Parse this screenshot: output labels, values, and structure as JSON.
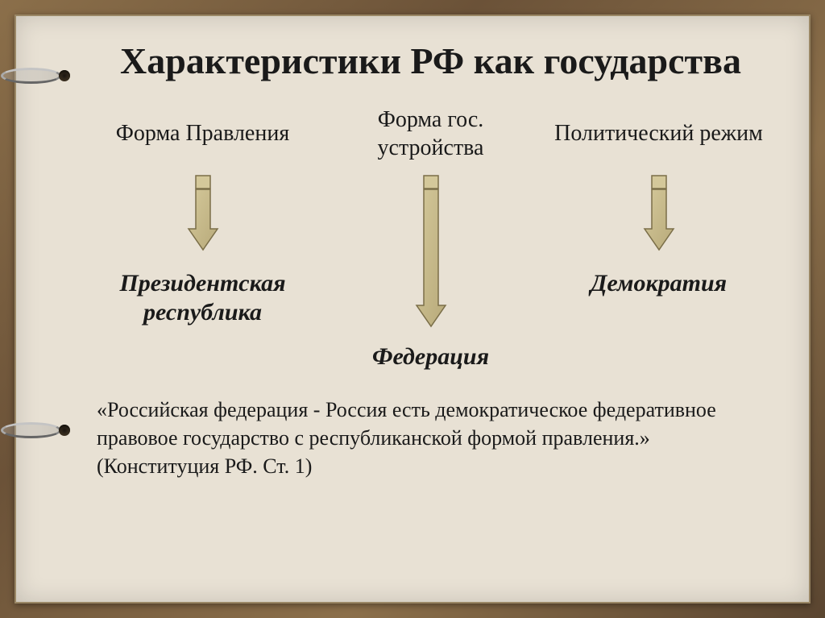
{
  "slide": {
    "title": "Характеристики РФ как государства",
    "title_fontsize": 46,
    "columns": [
      {
        "header": "Форма Правления",
        "result": "Президентская республика",
        "arrow_height": 95
      },
      {
        "header": "Форма гос. устройства",
        "result": "Федерация",
        "arrow_height": 190
      },
      {
        "header": "Политический режим",
        "result": "Демократия",
        "arrow_height": 95
      }
    ],
    "header_fontsize": 28,
    "result_fontsize": 30,
    "quote": "«Российская федерация - Россия есть демократическое федеративное правовое государство с республиканской формой правления.»  (Конституция РФ. Ст. 1)",
    "quote_fontsize": 26,
    "colors": {
      "background": "#e8e1d4",
      "frame": "#7a5f3e",
      "text": "#1a1a1a",
      "arrow_fill_light": "#d4c89a",
      "arrow_fill_dark": "#b8aa7a",
      "arrow_stroke": "#7a6e48"
    },
    "arrow": {
      "tail_width": 18,
      "tail_height": 16,
      "head_width": 36
    }
  }
}
